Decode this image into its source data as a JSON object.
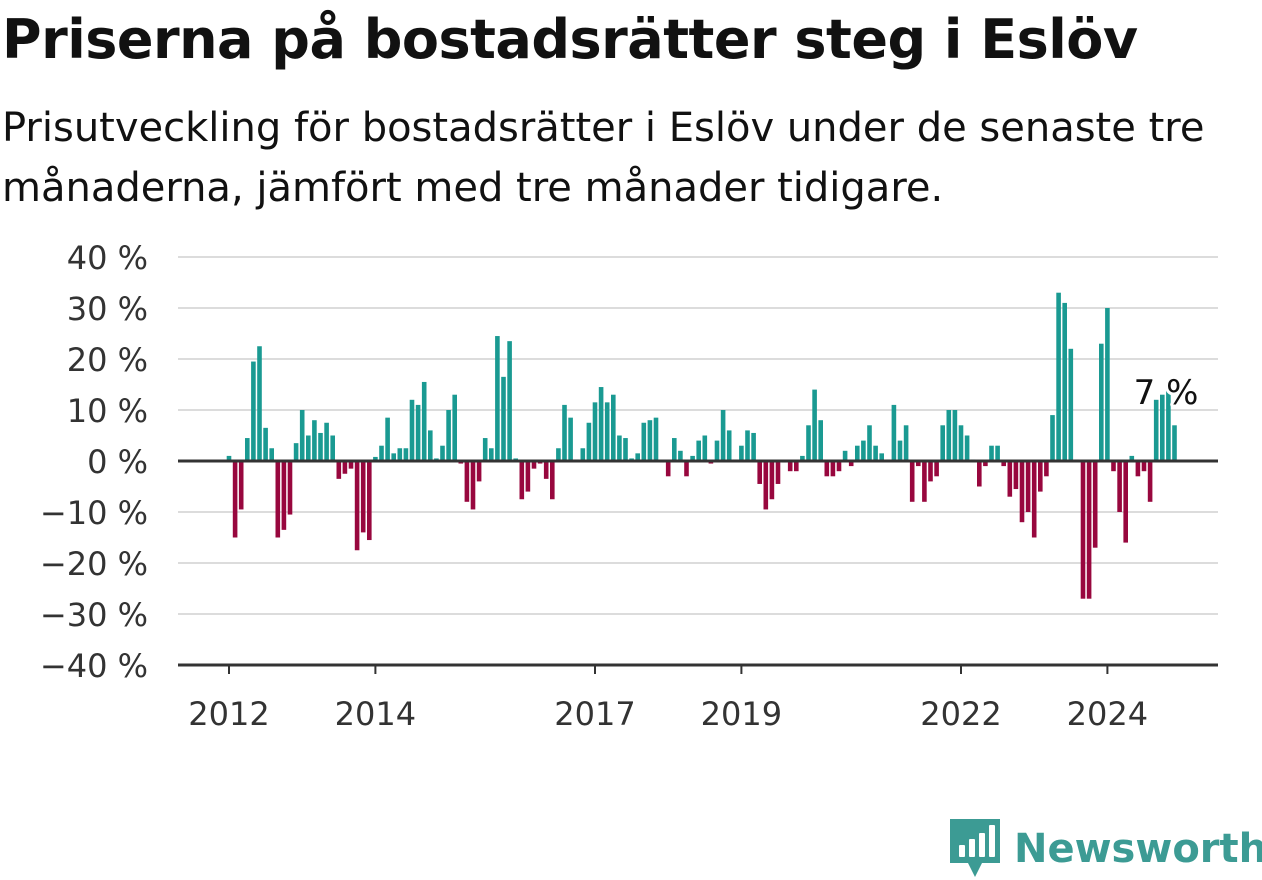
{
  "chart_data": {
    "type": "bar",
    "title": "Priserna på bostadsrätter steg i Eslöv",
    "subtitle": "Prisutveckling för bostadsrätter i Eslöv under de senaste tre månaderna, jämfört med tre månader tidigare.",
    "ylim": [
      -40,
      40
    ],
    "yticks": [
      40,
      30,
      20,
      10,
      0,
      -10,
      -20,
      -30,
      -40
    ],
    "ytick_labels": [
      "40 %",
      "30 %",
      "20 %",
      "10 %",
      "0 %",
      "−10 %",
      "−20 %",
      "−30 %",
      "−40 %"
    ],
    "x_start": "2012-01",
    "x_ticks": [
      {
        "label": "2012",
        "month": "2012-01"
      },
      {
        "label": "2014",
        "month": "2014-01"
      },
      {
        "label": "2017",
        "month": "2017-01"
      },
      {
        "label": "2019",
        "month": "2019-01"
      },
      {
        "label": "2022",
        "month": "2022-01"
      },
      {
        "label": "2024",
        "month": "2024-01"
      }
    ],
    "grid": true,
    "legend": "none",
    "positive_color": "#1a9a92",
    "negative_color": "#98073e",
    "values": [
      1,
      -15,
      -9.5,
      4.5,
      19.5,
      22.5,
      6.5,
      2.5,
      -15,
      -13.5,
      -10.5,
      3.5,
      10,
      5,
      8,
      5.5,
      7.5,
      5,
      -3.5,
      -2.5,
      -1.5,
      -17.5,
      -14,
      -15.5,
      0.8,
      3,
      8.5,
      1.5,
      2.5,
      2.5,
      12,
      11,
      15.5,
      6,
      0.5,
      3,
      10,
      13,
      -0.5,
      -8,
      -9.5,
      -4,
      4.5,
      2.5,
      24.5,
      16.5,
      23.5,
      0.5,
      -7.5,
      -6,
      -1.5,
      -0.5,
      -3.5,
      -7.5,
      2.5,
      11,
      8.5,
      0.3,
      2.5,
      7.5,
      11.5,
      14.5,
      11.5,
      13,
      5,
      4.5,
      0.5,
      1.5,
      7.5,
      8,
      8.5,
      -0.3,
      -3,
      4.5,
      2,
      -3,
      1,
      4,
      5,
      -0.5,
      4,
      10,
      6,
      0.3,
      3,
      6,
      5.5,
      -4.5,
      -9.5,
      -7.5,
      -4.5,
      -0.3,
      -2,
      -2,
      1,
      7,
      14,
      8,
      -3,
      -3,
      -2,
      2,
      -1,
      3,
      4,
      7,
      3,
      1.5,
      0.3,
      11,
      4,
      7,
      -8,
      -1,
      -8,
      -4,
      -3,
      7,
      10,
      10,
      7,
      5,
      0.3,
      -5,
      -1,
      3,
      3,
      -1,
      -7,
      -5.5,
      -12,
      -10,
      -15,
      -6,
      -3,
      9,
      33,
      31,
      22,
      0.3,
      -27,
      -27,
      -17,
      23,
      30,
      -2,
      -10,
      -16,
      1,
      -3,
      -2,
      -8,
      12,
      13,
      14.5,
      7
    ],
    "annotation": "7 %"
  },
  "brand": {
    "name": "Newsworthy",
    "color": "#3c9b94"
  }
}
